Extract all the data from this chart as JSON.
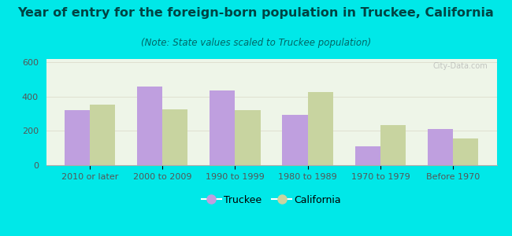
{
  "title": "Year of entry for the foreign-born population in Truckee, California",
  "subtitle": "(Note: State values scaled to Truckee population)",
  "categories": [
    "2010 or later",
    "2000 to 2009",
    "1990 to 1999",
    "1980 to 1989",
    "1970 to 1979",
    "Before 1970"
  ],
  "truckee_values": [
    320,
    460,
    435,
    295,
    110,
    210
  ],
  "california_values": [
    355,
    325,
    320,
    425,
    235,
    155
  ],
  "truckee_color": "#bf9fdf",
  "california_color": "#c8d4a0",
  "bar_width": 0.35,
  "ylim": [
    0,
    620
  ],
  "yticks": [
    0,
    200,
    400,
    600
  ],
  "background_color": "#00e8e8",
  "plot_bg_color": "#eef5e8",
  "watermark": "City-Data.com",
  "legend_truckee": "Truckee",
  "legend_california": "California",
  "title_fontsize": 11.5,
  "subtitle_fontsize": 8.5,
  "axis_fontsize": 8,
  "legend_fontsize": 9,
  "title_color": "#004444",
  "subtitle_color": "#006666",
  "tick_color": "#555555"
}
